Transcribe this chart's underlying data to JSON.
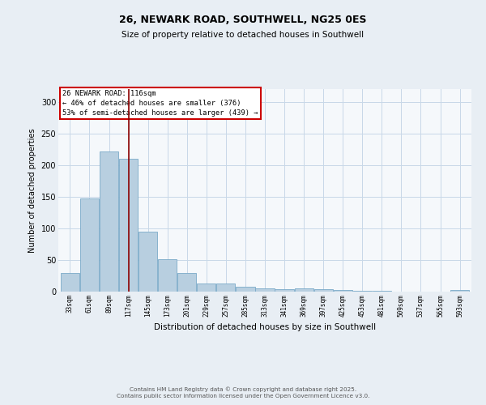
{
  "title1": "26, NEWARK ROAD, SOUTHWELL, NG25 0ES",
  "title2": "Size of property relative to detached houses in Southwell",
  "xlabel": "Distribution of detached houses by size in Southwell",
  "ylabel": "Number of detached properties",
  "bins": [
    33,
    61,
    89,
    117,
    145,
    173,
    201,
    229,
    257,
    285,
    313,
    341,
    369,
    397,
    425,
    453,
    481,
    509,
    537,
    565,
    593
  ],
  "values": [
    30,
    147,
    222,
    210,
    95,
    51,
    30,
    13,
    13,
    8,
    5,
    4,
    5,
    4,
    3,
    1,
    1,
    0,
    0,
    0,
    2
  ],
  "bar_color": "#b8cfe0",
  "bar_edge_color": "#7aaac8",
  "vline_x": 117,
  "vline_color": "#8b0000",
  "annotation_text": "26 NEWARK ROAD: 116sqm\n← 46% of detached houses are smaller (376)\n53% of semi-detached houses are larger (439) →",
  "annotation_box_color": "#cc0000",
  "ylim": [
    0,
    320
  ],
  "yticks": [
    0,
    50,
    100,
    150,
    200,
    250,
    300
  ],
  "footer_text": "Contains HM Land Registry data © Crown copyright and database right 2025.\nContains public sector information licensed under the Open Government Licence v3.0.",
  "bg_color": "#e8eef4",
  "plot_bg_color": "#f5f8fb",
  "grid_color": "#c8d8e8"
}
